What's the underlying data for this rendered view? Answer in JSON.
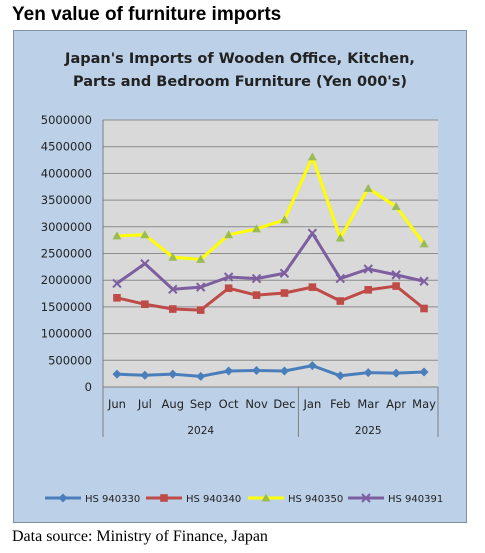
{
  "heading": "Yen value of furniture imports",
  "source_note": "Data source: Ministry of Finance, Japan",
  "chart_data": {
    "type": "line",
    "title_lines": [
      "Japan's Imports of  Wooden  Office, Kitchen,",
      "Parts and Bedroom Furniture (Yen 000's)"
    ],
    "categories": [
      "Jun",
      "Jul",
      "Aug",
      "Sep",
      "Oct",
      "Nov",
      "Dec",
      "Jan",
      "Feb",
      "Mar",
      "Apr",
      "May"
    ],
    "year_groups": [
      {
        "label": "2024",
        "start": 0,
        "end": 6
      },
      {
        "label": "2025",
        "start": 7,
        "end": 11
      }
    ],
    "ylim": [
      0,
      5000000
    ],
    "yticks": [
      0,
      500000,
      1000000,
      1500000,
      2000000,
      2500000,
      3000000,
      3500000,
      4000000,
      4500000,
      5000000
    ],
    "grid": true,
    "legend_position": "bottom",
    "series": [
      {
        "name": "HS 940330",
        "color": "#4a7ebb",
        "marker": "diamond",
        "values": [
          240000,
          220000,
          240000,
          200000,
          300000,
          310000,
          300000,
          400000,
          210000,
          270000,
          260000,
          280000
        ]
      },
      {
        "name": "HS 940340",
        "color": "#be4b48",
        "marker": "square",
        "values": [
          1670000,
          1550000,
          1460000,
          1440000,
          1850000,
          1720000,
          1760000,
          1870000,
          1610000,
          1820000,
          1890000,
          1470000
        ]
      },
      {
        "name": "HS 940350",
        "color": "#ffff00",
        "marker": "triangle",
        "values": [
          2830000,
          2850000,
          2430000,
          2390000,
          2850000,
          2960000,
          3130000,
          4310000,
          2790000,
          3720000,
          3380000,
          2680000
        ]
      },
      {
        "name": "HS 940391",
        "color": "#7d5fa0",
        "marker": "x",
        "values": [
          1940000,
          2310000,
          1830000,
          1870000,
          2060000,
          2030000,
          2130000,
          2880000,
          2030000,
          2210000,
          2100000,
          1980000
        ]
      }
    ]
  }
}
